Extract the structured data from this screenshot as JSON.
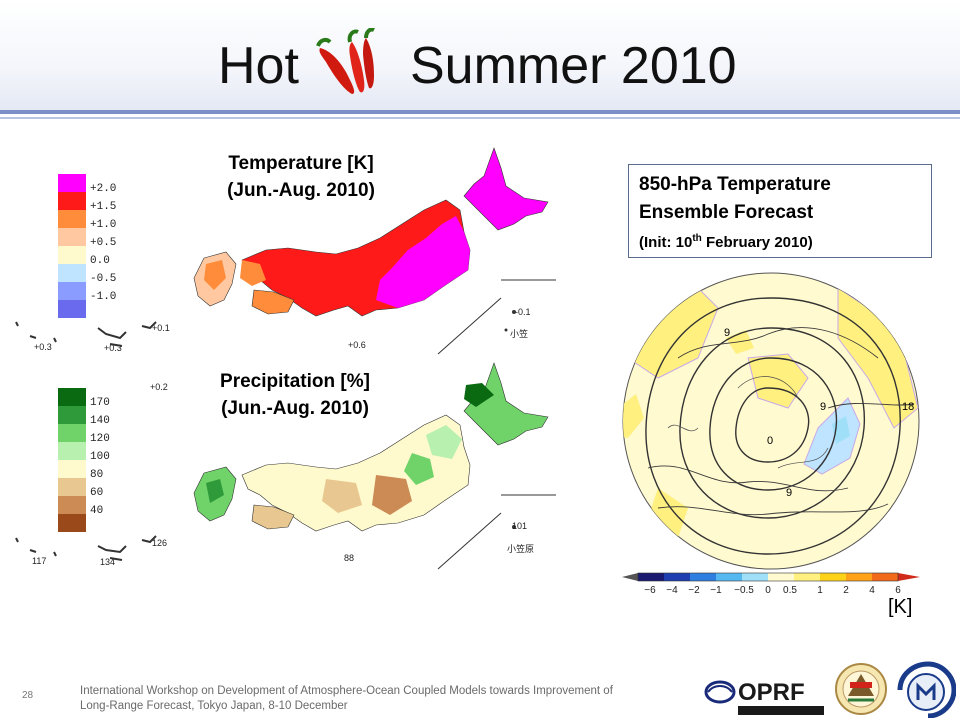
{
  "title": {
    "word1": "Hot",
    "word2": "Summer 2010"
  },
  "temperature_map": {
    "title_line1": "Temperature [K]",
    "title_line2": "(Jun.-Aug. 2010)",
    "legend": [
      {
        "label": "+2.0",
        "color": "#ff00ff"
      },
      {
        "label": "+1.5",
        "color": "#ff1a1a"
      },
      {
        "label": "+1.0",
        "color": "#ff8c3a"
      },
      {
        "label": "+0.5",
        "color": "#ffc8a0"
      },
      {
        "label": "0.0",
        "color": "#fffacd"
      },
      {
        "label": "-0.5",
        "color": "#bfe4ff"
      },
      {
        "label": "-1.0",
        "color": "#8a9cff"
      },
      {
        "label": "",
        "color": "#6a6aee"
      }
    ],
    "annotations": {
      "a1": "+0.3",
      "a2": "+0.3",
      "a3": "+0.1",
      "a4": "+0.2",
      "a5": "+0.6",
      "a6": "-0.1",
      "a7": "小笠"
    }
  },
  "precipitation_map": {
    "title_line1": "Precipitation [%]",
    "title_line2": "(Jun.-Aug. 2010)",
    "legend": [
      {
        "label": "",
        "color": "#0a6a12"
      },
      {
        "label": "170",
        "color": "#2e9a3a"
      },
      {
        "label": "140",
        "color": "#6fd36a"
      },
      {
        "label": "120",
        "color": "#b8f0b0"
      },
      {
        "label": "100",
        "color": "#fffacd"
      },
      {
        "label": "80",
        "color": "#e8c890"
      },
      {
        "label": "60",
        "color": "#cc8a55"
      },
      {
        "label": "40",
        "color": "#9a4a1a"
      }
    ],
    "annotations": {
      "a1": "117",
      "a2": "134",
      "a3": "126",
      "a4": "88",
      "a5": "101",
      "a6": "小笠原"
    }
  },
  "forecast": {
    "line1": "850-hPa Temperature",
    "line2": "Ensemble Forecast",
    "line3_pre": "(Init:  10",
    "line3_sup": "th",
    "line3_post": "  February    2010)",
    "contours": {
      "c1": "9",
      "c2": "9",
      "c3": "0",
      "c4": "9",
      "c5": "18"
    },
    "colorbar_ticks": [
      "−6",
      "−4",
      "−2",
      "−1",
      "−0.5",
      "0",
      "0.5",
      "1",
      "2",
      "4",
      "6"
    ],
    "colorbar_colors": [
      "#1a1a70",
      "#1f3fb0",
      "#2f7fe0",
      "#55b8f0",
      "#9fe0f8",
      "#fffad0",
      "#fff080",
      "#ffd21a",
      "#ffa21a",
      "#f06a1a",
      "#d02a1a"
    ],
    "unit": "[K]"
  },
  "footer": {
    "page_number": "28",
    "line1": "International Workshop on Development of Atmosphere-Ocean Coupled Models towards Improvement of",
    "line2": "Long-Range Forecast, Tokyo Japan, 8-10 December",
    "logo_text": "OPRF"
  }
}
